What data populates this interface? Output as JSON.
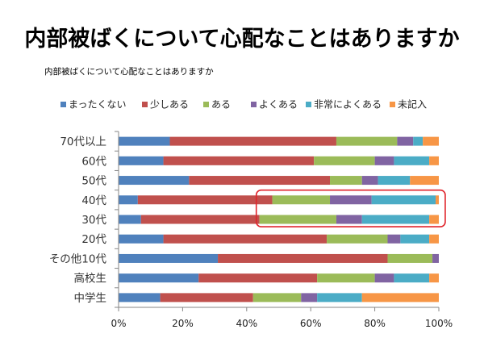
{
  "slide": {
    "title": "内部被ばくについて心配なことはありますか"
  },
  "chart_data": {
    "type": "bar",
    "orientation": "horizontal",
    "stacked": "percent",
    "title": "内部被ばくについて心配なことはありますか",
    "legend_position": "top",
    "categories": [
      "70代以上",
      "60代",
      "50代",
      "40代",
      "30代",
      "20代",
      "その他10代",
      "高校生",
      "中学生"
    ],
    "series": [
      {
        "name": "まったくない",
        "color": "#4f81bd",
        "values": [
          16,
          14,
          22,
          6,
          7,
          14,
          31,
          25,
          13
        ]
      },
      {
        "name": "少しある",
        "color": "#c0504d",
        "values": [
          52,
          47,
          44,
          42,
          37,
          51,
          53,
          37,
          29
        ]
      },
      {
        "name": "ある",
        "color": "#9bbb59",
        "values": [
          19,
          19,
          10,
          18,
          24,
          19,
          14,
          18,
          15
        ]
      },
      {
        "name": "よくある",
        "color": "#8064a2",
        "values": [
          5,
          6,
          5,
          13,
          8,
          4,
          2,
          6,
          5
        ]
      },
      {
        "name": "非常によくある",
        "color": "#4bacc6",
        "values": [
          3,
          11,
          10,
          20,
          21,
          9,
          0,
          11,
          14
        ]
      },
      {
        "name": "未記入",
        "color": "#f79646",
        "values": [
          5,
          3,
          9,
          1,
          3,
          3,
          0,
          3,
          24
        ]
      }
    ],
    "x_ticks": [
      "0%",
      "20%",
      "40%",
      "60%",
      "80%",
      "100%"
    ],
    "xlim": [
      0,
      100
    ],
    "gridlines": false,
    "highlight": {
      "categories": [
        "40代",
        "30代"
      ],
      "range": [
        43,
        102
      ],
      "color": "#e0242b"
    }
  }
}
